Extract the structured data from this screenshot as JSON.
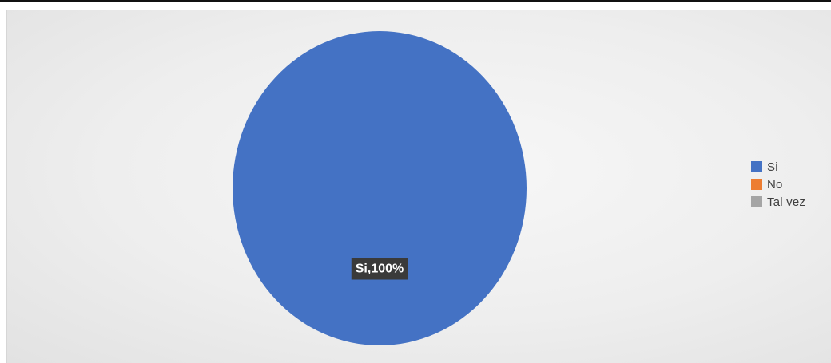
{
  "chart_data": {
    "type": "pie",
    "categories": [
      "Si",
      "No",
      "Tal vez"
    ],
    "values": [
      100,
      0,
      0
    ],
    "colors": [
      "#4472c4",
      "#ed7d31",
      "#a5a5a5"
    ],
    "data_labels": [
      "Si,100%"
    ],
    "legend_position": "right"
  }
}
